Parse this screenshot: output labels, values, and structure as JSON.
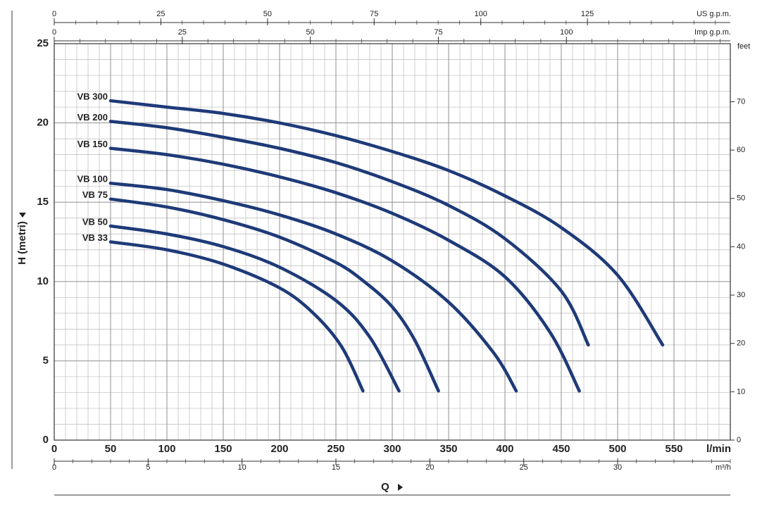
{
  "chart_data": {
    "type": "line",
    "x_title": "Q",
    "y_label": "H (metri)",
    "x_label": "l/min",
    "xlim": [
      0,
      600
    ],
    "xticks": [
      0,
      50,
      100,
      150,
      200,
      250,
      300,
      350,
      400,
      450,
      500,
      550
    ],
    "ylim": [
      0,
      25
    ],
    "yticks": [
      0,
      5,
      10,
      15,
      20,
      25
    ],
    "y2_label": "feet",
    "y2lim": [
      0,
      82.02
    ],
    "y2ticks": [
      0,
      10,
      20,
      30,
      40,
      50,
      60,
      70
    ],
    "grid": true,
    "top_axes": [
      {
        "label": "US g.p.m.",
        "xlim": [
          0,
          158.5
        ],
        "xticks": [
          0,
          25,
          50,
          75,
          100,
          125
        ]
      },
      {
        "label": "Imp g.p.m.",
        "xlim": [
          0,
          132
        ],
        "xticks": [
          0,
          25,
          50,
          75,
          100
        ]
      }
    ],
    "bottom_axis": {
      "label": "m³/h",
      "xlim": [
        0,
        36
      ],
      "xticks": [
        0,
        5,
        10,
        15,
        20,
        25,
        30
      ]
    },
    "series": [
      {
        "name": "VB 300",
        "color": "#1e3a78",
        "x": [
          50,
          100,
          150,
          200,
          250,
          300,
          350,
          400,
          450,
          500,
          540
        ],
        "values": [
          21.4,
          21.0,
          20.6,
          20.0,
          19.2,
          18.2,
          17.0,
          15.4,
          13.4,
          10.4,
          6.0
        ]
      },
      {
        "name": "VB 200",
        "color": "#1e3a78",
        "x": [
          50,
          100,
          150,
          200,
          250,
          300,
          350,
          400,
          450,
          474
        ],
        "values": [
          20.1,
          19.7,
          19.1,
          18.4,
          17.5,
          16.3,
          14.8,
          12.7,
          9.4,
          6.0
        ]
      },
      {
        "name": "VB 150",
        "color": "#1e3a78",
        "x": [
          50,
          100,
          150,
          200,
          250,
          300,
          350,
          400,
          440,
          466
        ],
        "values": [
          18.4,
          18.0,
          17.4,
          16.6,
          15.6,
          14.3,
          12.6,
          10.3,
          6.8,
          3.1
        ]
      },
      {
        "name": "VB 100",
        "color": "#1e3a78",
        "x": [
          50,
          100,
          150,
          200,
          250,
          300,
          350,
          390,
          410
        ],
        "values": [
          16.2,
          15.8,
          15.1,
          14.2,
          13.0,
          11.3,
          8.7,
          5.5,
          3.1
        ]
      },
      {
        "name": "VB 75",
        "color": "#1e3a78",
        "x": [
          50,
          100,
          150,
          200,
          250,
          275,
          300,
          320,
          341
        ],
        "values": [
          15.2,
          14.7,
          13.9,
          12.8,
          11.2,
          10.0,
          8.4,
          6.3,
          3.1
        ]
      },
      {
        "name": "VB 50",
        "color": "#1e3a78",
        "x": [
          50,
          100,
          150,
          200,
          250,
          280,
          306
        ],
        "values": [
          13.5,
          13.0,
          12.2,
          10.9,
          8.8,
          6.5,
          3.1
        ]
      },
      {
        "name": "VB 33",
        "color": "#1e3a78",
        "x": [
          50,
          100,
          150,
          200,
          230,
          255,
          274
        ],
        "values": [
          12.5,
          12.0,
          11.1,
          9.6,
          8.0,
          5.9,
          3.1
        ]
      }
    ]
  }
}
